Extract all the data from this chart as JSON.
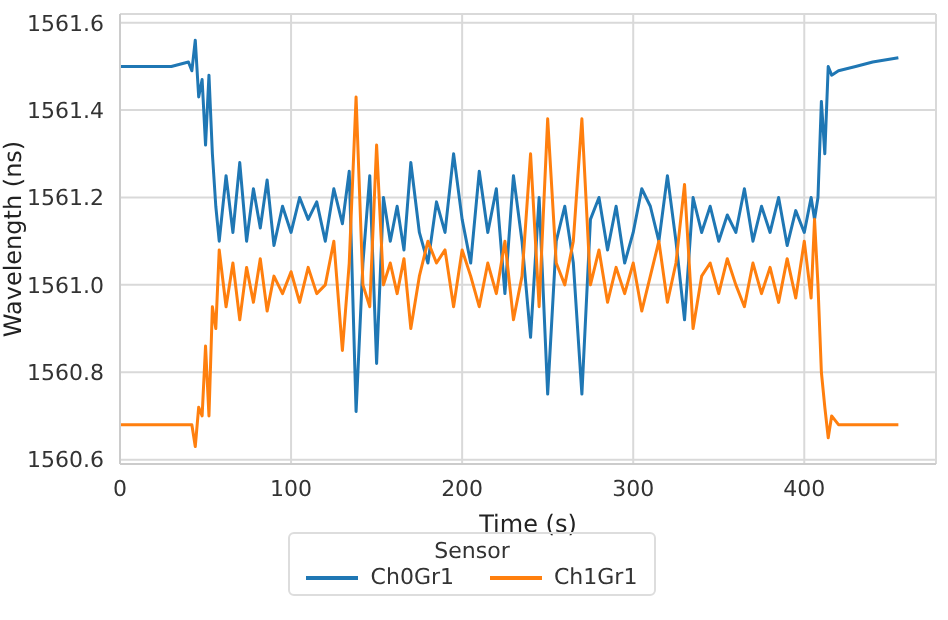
{
  "chart_data": {
    "type": "line",
    "xlabel": "Time (s)",
    "ylabel": "Wavelength (ns)",
    "legend_title": "Sensor",
    "legend": "bottom",
    "grid": true,
    "marker": "none",
    "line_style": "solid",
    "xlim": [
      0,
      477
    ],
    "xticks": [
      0,
      100,
      200,
      300,
      400
    ],
    "ylim": [
      1560.59,
      1561.62
    ],
    "yticks": [
      {
        "value": 1560.6,
        "label": "1560.6"
      },
      {
        "value": 1560.8,
        "label": "1560.8"
      },
      {
        "value": 1561,
        "label": "1561.0"
      },
      {
        "value": 1561.2,
        "label": "1561.2"
      },
      {
        "value": 1561.4,
        "label": "1561.4"
      },
      {
        "value": 1561.6,
        "label": "1561.6"
      }
    ],
    "x": [
      0,
      10,
      20,
      30,
      40,
      42,
      44,
      46,
      48,
      50,
      52,
      54,
      56,
      58,
      62,
      66,
      70,
      74,
      78,
      82,
      86,
      90,
      95,
      100,
      105,
      110,
      115,
      120,
      125,
      130,
      134,
      138,
      142,
      146,
      150,
      154,
      158,
      162,
      166,
      170,
      175,
      180,
      185,
      190,
      195,
      200,
      205,
      210,
      215,
      220,
      225,
      230,
      235,
      240,
      245,
      250,
      255,
      260,
      265,
      270,
      275,
      280,
      285,
      290,
      295,
      300,
      305,
      310,
      315,
      320,
      325,
      330,
      335,
      340,
      345,
      350,
      355,
      360,
      365,
      370,
      375,
      380,
      385,
      390,
      395,
      400,
      404,
      406,
      408,
      410,
      412,
      414,
      416,
      420,
      430,
      440,
      455
    ],
    "series": [
      {
        "name": "Ch0Gr1",
        "color": "#1f77b4",
        "values": [
          1561.5,
          1561.5,
          1561.5,
          1561.5,
          1561.51,
          1561.49,
          1561.56,
          1561.43,
          1561.47,
          1561.32,
          1561.48,
          1561.3,
          1561.18,
          1561.1,
          1561.25,
          1561.12,
          1561.28,
          1561.1,
          1561.22,
          1561.13,
          1561.24,
          1561.09,
          1561.18,
          1561.12,
          1561.2,
          1561.15,
          1561.19,
          1561.1,
          1561.22,
          1561.14,
          1561.26,
          1560.71,
          1561.05,
          1561.25,
          1560.82,
          1561.2,
          1561.1,
          1561.18,
          1561.08,
          1561.28,
          1561.12,
          1561.05,
          1561.19,
          1561.12,
          1561.3,
          1561.15,
          1561.05,
          1561.26,
          1561.12,
          1561.22,
          1560.98,
          1561.25,
          1561.1,
          1560.88,
          1561.2,
          1560.75,
          1561.1,
          1561.18,
          1561.05,
          1560.75,
          1561.15,
          1561.2,
          1561.08,
          1561.18,
          1561.05,
          1561.12,
          1561.22,
          1561.18,
          1561.1,
          1561.25,
          1561.1,
          1560.92,
          1561.2,
          1561.12,
          1561.18,
          1561.1,
          1561.16,
          1561.12,
          1561.22,
          1561.1,
          1561.18,
          1561.12,
          1561.2,
          1561.09,
          1561.17,
          1561.12,
          1561.2,
          1561.15,
          1561.2,
          1561.42,
          1561.3,
          1561.5,
          1561.48,
          1561.49,
          1561.5,
          1561.51,
          1561.52
        ]
      },
      {
        "name": "Ch1Gr1",
        "color": "#ff7f0e",
        "values": [
          1560.68,
          1560.68,
          1560.68,
          1560.68,
          1560.68,
          1560.68,
          1560.63,
          1560.72,
          1560.7,
          1560.86,
          1560.7,
          1560.95,
          1560.9,
          1561.08,
          1560.95,
          1561.05,
          1560.92,
          1561.04,
          1560.96,
          1561.06,
          1560.94,
          1561.02,
          1560.98,
          1561.03,
          1560.96,
          1561.04,
          1560.98,
          1561.0,
          1561.1,
          1560.85,
          1561.05,
          1561.43,
          1561.0,
          1560.95,
          1561.32,
          1561.0,
          1561.05,
          1560.98,
          1561.06,
          1560.9,
          1561.02,
          1561.1,
          1561.05,
          1561.08,
          1560.95,
          1561.08,
          1561.02,
          1560.95,
          1561.05,
          1560.98,
          1561.1,
          1560.92,
          1561.02,
          1561.3,
          1560.95,
          1561.38,
          1561.05,
          1561.0,
          1561.1,
          1561.38,
          1561.0,
          1561.08,
          1560.96,
          1561.04,
          1560.98,
          1561.05,
          1560.94,
          1561.02,
          1561.1,
          1560.96,
          1561.05,
          1561.23,
          1560.9,
          1561.02,
          1561.05,
          1560.98,
          1561.06,
          1561.0,
          1560.95,
          1561.05,
          1560.98,
          1561.04,
          1560.96,
          1561.06,
          1560.97,
          1561.1,
          1560.97,
          1561.15,
          1561.0,
          1560.8,
          1560.72,
          1560.65,
          1560.7,
          1560.68,
          1560.68,
          1560.68,
          1560.68
        ]
      }
    ]
  }
}
